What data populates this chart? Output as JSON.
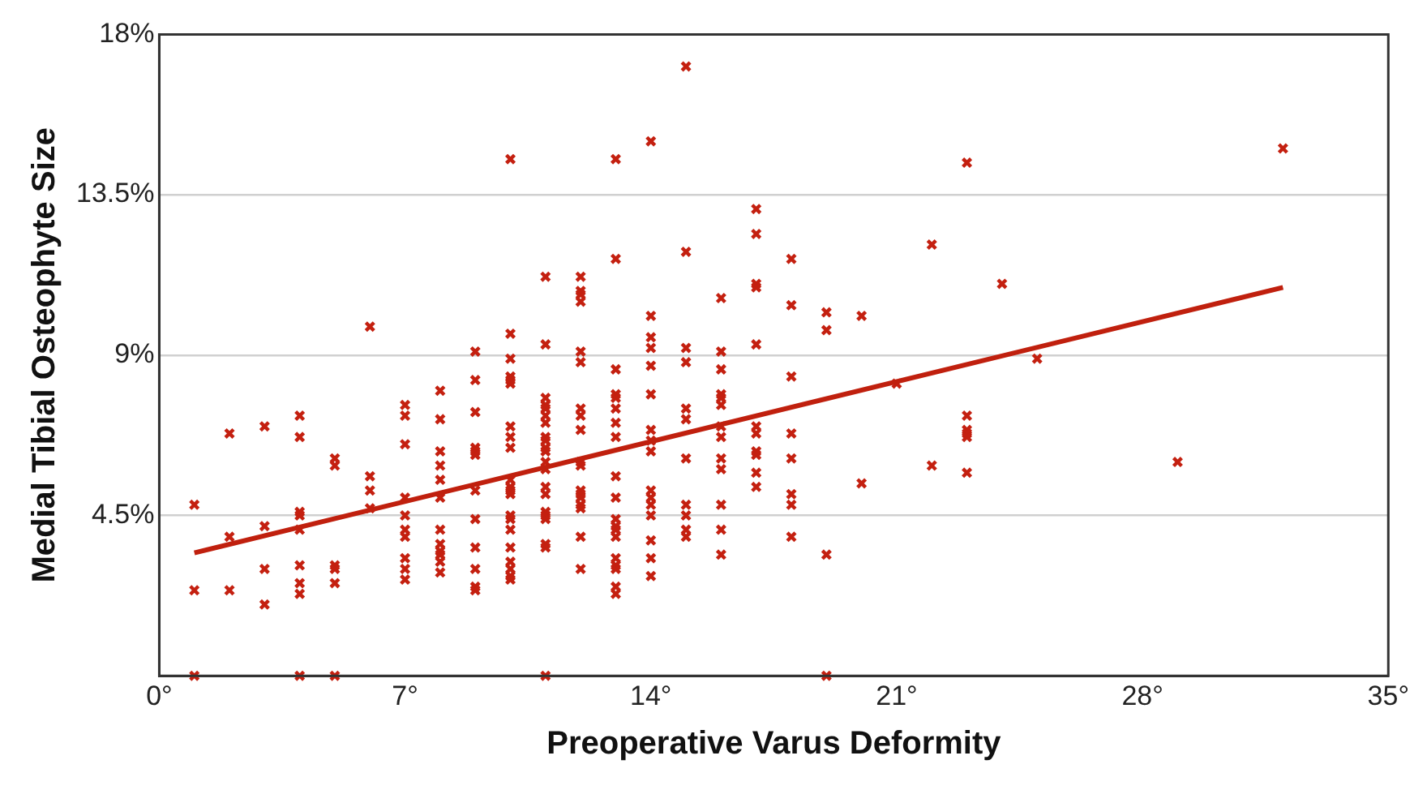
{
  "chart_data": {
    "type": "scatter",
    "xlabel": "Preoperative Varus Deformity",
    "ylabel": "Medial Tibial Osteophyte Size",
    "xlim": [
      0,
      35
    ],
    "xticks": [
      {
        "value": 0,
        "label": "0°"
      },
      {
        "value": 7,
        "label": "7°"
      },
      {
        "value": 14,
        "label": "14°"
      },
      {
        "value": 21,
        "label": "21°"
      },
      {
        "value": 28,
        "label": "28°"
      },
      {
        "value": 35,
        "label": "35°"
      }
    ],
    "ylim": [
      0,
      18
    ],
    "yticks": [
      {
        "value": 4.5,
        "label": "4.5%"
      },
      {
        "value": 9,
        "label": "9%"
      },
      {
        "value": 13.5,
        "label": "13.5%"
      },
      {
        "value": 18,
        "label": "18%"
      }
    ],
    "grid": "y",
    "legend": false,
    "series": [
      {
        "type": "scatter",
        "color": "#c42010",
        "marker": "cross",
        "x": [
          1,
          1,
          1,
          2,
          2,
          2,
          3,
          3,
          3,
          3,
          4,
          4,
          4,
          4,
          4,
          4,
          4,
          4,
          4,
          5,
          5,
          5,
          5,
          5,
          5,
          6,
          6,
          6,
          6,
          7,
          7,
          7,
          7,
          7,
          7,
          7,
          7,
          7,
          7,
          8,
          8,
          8,
          8,
          8,
          8,
          8,
          8,
          8,
          8,
          8,
          8,
          9,
          9,
          9,
          9,
          9,
          9,
          9,
          9,
          9,
          9,
          9,
          9,
          10,
          10,
          10,
          10,
          10,
          10,
          10,
          10,
          10,
          10,
          10,
          10,
          10,
          10,
          10,
          10,
          10,
          10,
          10,
          10,
          10,
          11,
          11,
          11,
          11,
          11,
          11,
          11,
          11,
          11,
          11,
          11,
          11,
          11,
          11,
          11,
          11,
          11,
          11,
          11,
          11,
          11,
          12,
          12,
          12,
          12,
          12,
          12,
          12,
          12,
          12,
          12,
          12,
          12,
          12,
          12,
          12,
          12,
          12,
          12,
          13,
          13,
          13,
          13,
          13,
          13,
          13,
          13,
          13,
          13,
          13,
          13,
          13,
          13,
          13,
          13,
          13,
          13,
          13,
          14,
          14,
          14,
          14,
          14,
          14,
          14,
          14,
          14,
          14,
          14,
          14,
          14,
          14,
          14,
          14,
          15,
          15,
          15,
          15,
          15,
          15,
          15,
          15,
          15,
          15,
          15,
          16,
          16,
          16,
          16,
          16,
          16,
          16,
          16,
          16,
          16,
          16,
          16,
          16,
          17,
          17,
          17,
          17,
          17,
          17,
          17,
          17,
          17,
          17,
          17,
          18,
          18,
          18,
          18,
          18,
          18,
          18,
          18,
          19,
          19,
          19,
          19,
          20,
          20,
          21,
          22,
          22,
          23,
          23,
          23,
          23,
          23,
          23,
          24,
          25,
          29,
          32
        ],
        "values": [
          4.8,
          2.4,
          0,
          6.8,
          3.9,
          2.4,
          7.0,
          4.2,
          3.0,
          2.0,
          7.3,
          6.7,
          4.6,
          4.5,
          4.1,
          3.1,
          2.6,
          2.3,
          0,
          6.1,
          5.9,
          3.1,
          3.0,
          2.6,
          0,
          9.8,
          5.6,
          5.2,
          4.7,
          7.6,
          7.3,
          6.5,
          5.0,
          4.5,
          4.1,
          3.9,
          3.3,
          3.0,
          2.7,
          8.0,
          7.2,
          6.3,
          5.9,
          5.5,
          5.0,
          4.1,
          3.7,
          3.5,
          3.4,
          3.2,
          2.9,
          9.1,
          8.3,
          7.4,
          6.4,
          6.3,
          6.2,
          5.2,
          4.4,
          3.6,
          3.0,
          2.5,
          2.4,
          14.5,
          9.6,
          8.9,
          8.4,
          8.3,
          8.2,
          7.0,
          6.7,
          6.4,
          5.5,
          5.3,
          5.2,
          5.1,
          4.5,
          4.4,
          4.1,
          3.6,
          3.2,
          3.0,
          2.8,
          2.7,
          11.2,
          9.3,
          7.8,
          7.6,
          7.5,
          7.3,
          7.1,
          6.7,
          6.6,
          6.4,
          6.3,
          6.0,
          5.8,
          5.3,
          5.1,
          4.6,
          4.5,
          4.4,
          3.7,
          3.6,
          0,
          11.2,
          10.8,
          10.7,
          10.5,
          9.1,
          8.8,
          7.5,
          7.3,
          6.9,
          6.0,
          5.9,
          5.2,
          5.1,
          5.0,
          4.8,
          4.7,
          3.9,
          3.0,
          14.5,
          11.7,
          8.6,
          7.9,
          7.8,
          7.5,
          7.1,
          6.7,
          5.6,
          5.0,
          4.4,
          4.2,
          4.1,
          3.9,
          3.3,
          3.1,
          3.0,
          2.5,
          2.3,
          15.0,
          10.1,
          9.5,
          9.2,
          8.7,
          7.9,
          6.9,
          6.6,
          6.3,
          5.2,
          5.0,
          4.8,
          4.5,
          3.8,
          3.3,
          2.8,
          17.1,
          11.9,
          9.2,
          8.8,
          7.5,
          7.2,
          6.1,
          4.8,
          4.5,
          4.1,
          3.9,
          10.6,
          9.1,
          8.6,
          7.9,
          7.8,
          7.6,
          7.0,
          6.7,
          6.1,
          5.8,
          4.8,
          4.1,
          3.4,
          13.1,
          12.4,
          11.0,
          10.9,
          9.3,
          7.0,
          6.8,
          6.3,
          6.2,
          5.7,
          5.3,
          11.7,
          10.4,
          8.4,
          6.8,
          6.1,
          5.1,
          4.8,
          3.9,
          10.2,
          9.7,
          3.4,
          0,
          10.1,
          5.4,
          8.2,
          12.1,
          5.9,
          14.4,
          7.3,
          6.9,
          6.8,
          6.7,
          5.7,
          11.0,
          8.9,
          6.0,
          14.8
        ]
      },
      {
        "type": "line",
        "color": "#c0200e",
        "marker": "none",
        "x": [
          1,
          32
        ],
        "values": [
          3.45,
          10.9
        ]
      }
    ]
  }
}
